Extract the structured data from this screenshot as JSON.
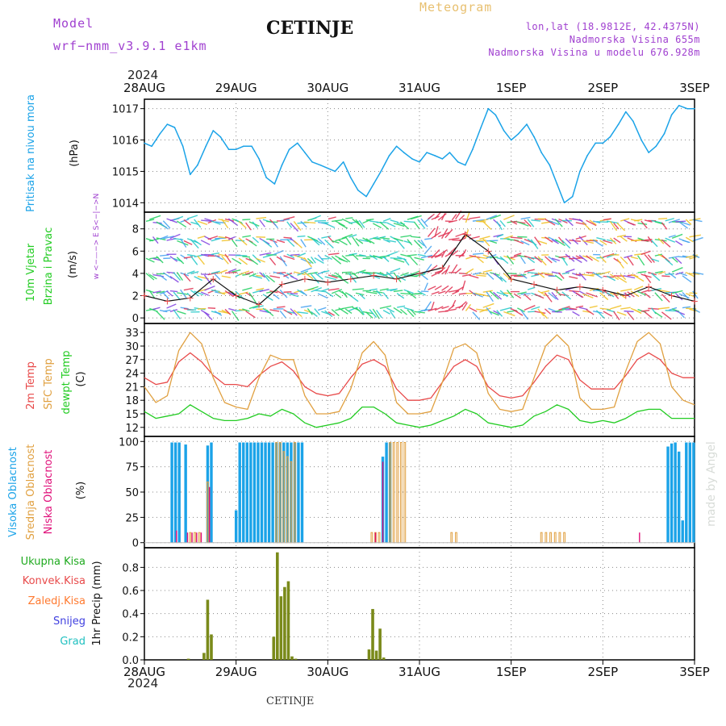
{
  "header": {
    "model_label": "Model",
    "model_name": "wrf−nmm_v3.9.1 e1km",
    "title": "CETINJE",
    "product": "Meteogram",
    "lonlat": "lon,lat (18.9812E, 42.4375N)",
    "elevation": "Nadmorska Visina 655m",
    "model_elevation": "Nadmorska Visina u modelu 676.928m",
    "year_top": "2024",
    "year_bottom": "2024",
    "footer_station": "CETINJE",
    "credit": "made by Angel"
  },
  "colors": {
    "pressure": "#1ba3e8",
    "temp2m": "#e84a4a",
    "sfc": "#e0a040",
    "dewpt": "#22cc22",
    "cloud_high": "#1ba3e8",
    "cloud_mid": "#e0a040",
    "cloud_low": "#e0107a",
    "precip_total": "#1faa1f",
    "precip_conv": "#e84a4a",
    "precip_frozen": "#ff7a30",
    "precip_snow": "#4040e0",
    "precip_graupel": "#20c0c0",
    "precip_bar": "#7a8a1a",
    "purple": "#a040d0",
    "gold": "#e8c070"
  },
  "chart_data": [
    {
      "type": "line",
      "id": "pressure",
      "ylabel": [
        "Pritisak na nivou mora",
        "(hPa)"
      ],
      "x_ticks": [
        "28AUG",
        "29AUG",
        "30AUG",
        "31AUG",
        "1SEP",
        "2SEP",
        "3SEP"
      ],
      "ylim": [
        1013.7,
        1017.3
      ],
      "yticks": [
        1014,
        1015,
        1016,
        1017
      ],
      "grid": true,
      "x_days": [
        0,
        0.08,
        0.17,
        0.25,
        0.33,
        0.42,
        0.5,
        0.58,
        0.67,
        0.75,
        0.83,
        0.92,
        1.0,
        1.08,
        1.17,
        1.25,
        1.33,
        1.42,
        1.5,
        1.58,
        1.67,
        1.75,
        1.83,
        1.92,
        2.0,
        2.08,
        2.17,
        2.25,
        2.33,
        2.42,
        2.5,
        2.58,
        2.67,
        2.75,
        2.83,
        2.92,
        3.0,
        3.08,
        3.17,
        3.25,
        3.33,
        3.42,
        3.5,
        3.58,
        3.67,
        3.75,
        3.83,
        3.92,
        4.0,
        4.08,
        4.17,
        4.25,
        4.33,
        4.42,
        4.5,
        4.58,
        4.67,
        4.75,
        4.83,
        4.92,
        5.0,
        5.08,
        5.17,
        5.25,
        5.33,
        5.42,
        5.5,
        5.58,
        5.67,
        5.75,
        5.83,
        5.92,
        6.0
      ],
      "values": [
        1015.9,
        1015.8,
        1016.2,
        1016.5,
        1016.4,
        1015.8,
        1014.9,
        1015.2,
        1015.8,
        1016.3,
        1016.1,
        1015.7,
        1015.7,
        1015.8,
        1015.8,
        1015.4,
        1014.8,
        1014.6,
        1015.2,
        1015.7,
        1015.9,
        1015.6,
        1015.3,
        1015.2,
        1015.1,
        1015.0,
        1015.3,
        1014.8,
        1014.4,
        1014.2,
        1014.6,
        1015.0,
        1015.5,
        1015.8,
        1015.6,
        1015.4,
        1015.3,
        1015.6,
        1015.5,
        1015.4,
        1015.6,
        1015.3,
        1015.2,
        1015.7,
        1016.4,
        1017.0,
        1016.8,
        1016.3,
        1016.0,
        1016.2,
        1016.5,
        1016.1,
        1015.6,
        1015.2,
        1014.6,
        1014.0,
        1014.2,
        1015.0,
        1015.5,
        1015.9,
        1015.9,
        1016.1,
        1016.5,
        1016.9,
        1016.6,
        1016.0,
        1015.6,
        1015.8,
        1016.2,
        1016.8,
        1017.1,
        1017.0,
        1017.0
      ]
    },
    {
      "type": "line",
      "id": "wind",
      "ylabel": [
        "10m Vjetar",
        "Brzina i Pravac",
        "(m/s)"
      ],
      "compass": "w <−—−> E  S<−|−>N",
      "ylim": [
        -0.5,
        9.5
      ],
      "yticks": [
        0,
        2,
        4,
        6,
        8
      ],
      "grid": true,
      "x_days": [
        0,
        0.25,
        0.5,
        0.75,
        1.0,
        1.25,
        1.5,
        1.75,
        2.0,
        2.25,
        2.5,
        2.75,
        3.0,
        3.25,
        3.5,
        3.75,
        4.0,
        4.25,
        4.5,
        4.75,
        5.0,
        5.25,
        5.5,
        5.75,
        6.0
      ],
      "values": [
        2.0,
        1.5,
        1.8,
        3.5,
        2.0,
        1.2,
        3.0,
        3.5,
        3.2,
        3.5,
        3.8,
        3.5,
        4.0,
        4.5,
        7.5,
        6.0,
        3.5,
        3.0,
        2.5,
        2.8,
        2.5,
        2.0,
        2.8,
        2.0,
        1.5
      ]
    },
    {
      "type": "line",
      "id": "temperature",
      "ylabel": [
        "2m Temp",
        "SFC Temp",
        "dewpt Temp",
        "(C)"
      ],
      "ylim": [
        10,
        35
      ],
      "yticks": [
        12,
        15,
        18,
        21,
        24,
        27,
        30,
        33
      ],
      "grid": true,
      "x_days": [
        0,
        0.125,
        0.25,
        0.375,
        0.5,
        0.625,
        0.75,
        0.875,
        1.0,
        1.125,
        1.25,
        1.375,
        1.5,
        1.625,
        1.75,
        1.875,
        2.0,
        2.125,
        2.25,
        2.375,
        2.5,
        2.625,
        2.75,
        2.875,
        3.0,
        3.125,
        3.25,
        3.375,
        3.5,
        3.625,
        3.75,
        3.875,
        4.0,
        4.125,
        4.25,
        4.375,
        4.5,
        4.625,
        4.75,
        4.875,
        5.0,
        5.125,
        5.25,
        5.375,
        5.5,
        5.625,
        5.75,
        5.875,
        6.0
      ],
      "series": [
        {
          "name": "2m Temp",
          "values": [
            23.0,
            21.5,
            22.0,
            26.5,
            28.5,
            26.5,
            23.5,
            21.5,
            21.5,
            21.0,
            23.5,
            25.5,
            26.5,
            24.5,
            21.0,
            19.5,
            19.0,
            19.5,
            23.0,
            26.0,
            27.0,
            25.5,
            20.5,
            18.0,
            18.0,
            18.5,
            22.0,
            25.5,
            27.0,
            25.5,
            21.0,
            19.0,
            18.5,
            19.0,
            22.0,
            25.5,
            28.0,
            27.0,
            22.5,
            20.5,
            20.5,
            20.5,
            23.5,
            27.0,
            28.5,
            27.0,
            24.0,
            23.0,
            23.0
          ]
        },
        {
          "name": "SFC Temp",
          "values": [
            21.0,
            17.5,
            19.0,
            29.0,
            33.0,
            30.5,
            23.0,
            17.5,
            16.5,
            16.0,
            23.0,
            28.0,
            27.0,
            27.0,
            19.0,
            15.0,
            15.0,
            15.5,
            20.5,
            28.5,
            31.0,
            28.0,
            17.5,
            15.0,
            15.0,
            15.5,
            22.0,
            29.5,
            30.5,
            28.5,
            19.5,
            16.0,
            15.5,
            16.0,
            23.0,
            30.0,
            32.5,
            30.0,
            18.5,
            16.0,
            16.0,
            16.5,
            24.5,
            31.0,
            33.0,
            30.5,
            21.0,
            18.0,
            17.0
          ]
        },
        {
          "name": "dewpt Temp",
          "values": [
            15.5,
            14.0,
            14.5,
            15.0,
            17.0,
            15.5,
            14.0,
            13.5,
            13.5,
            14.0,
            15.0,
            14.5,
            16.0,
            15.0,
            13.0,
            12.0,
            12.5,
            13.0,
            14.0,
            16.5,
            16.5,
            15.0,
            13.0,
            12.5,
            12.0,
            12.5,
            13.5,
            14.5,
            16.0,
            15.0,
            13.0,
            12.5,
            12.0,
            12.5,
            14.5,
            15.5,
            17.0,
            16.0,
            13.5,
            13.0,
            13.5,
            13.0,
            14.0,
            15.5,
            16.0,
            16.0,
            14.0,
            14.0,
            14.0
          ]
        }
      ]
    },
    {
      "type": "bar",
      "id": "clouds",
      "ylabel": [
        "Visoka Oblacnost",
        "Srednja Oblacnost",
        "Niska Oblacnost",
        "(%)"
      ],
      "ylim": [
        -5,
        105
      ],
      "yticks": [
        0,
        25,
        50,
        75,
        100
      ],
      "grid": true,
      "series": [
        {
          "name": "Visoka Oblacnost",
          "x_days": [
            0.3,
            0.34,
            0.38,
            0.45,
            0.69,
            0.73,
            1.0,
            1.04,
            1.08,
            1.12,
            1.16,
            1.2,
            1.24,
            1.28,
            1.32,
            1.36,
            1.4,
            1.44,
            1.48,
            1.52,
            1.56,
            1.6,
            1.64,
            1.68,
            1.72,
            2.6,
            2.64,
            2.68,
            5.71,
            5.75,
            5.79,
            5.83,
            5.87,
            5.91,
            5.95,
            5.99
          ],
          "values": [
            99,
            99,
            99,
            97,
            96,
            99,
            32,
            99,
            99,
            99,
            99,
            99,
            99,
            99,
            99,
            99,
            99,
            99,
            99,
            99,
            99,
            99,
            99,
            99,
            99,
            85,
            99,
            99,
            95,
            98,
            99,
            90,
            22,
            99,
            99,
            99
          ]
        },
        {
          "name": "Srednja Oblacnost",
          "x_days": [
            0.5,
            0.55,
            0.6,
            0.69,
            1.44,
            1.48,
            1.52,
            1.56,
            1.6,
            1.64,
            2.48,
            2.52,
            2.56,
            2.68,
            2.72,
            2.76,
            2.8,
            2.84,
            3.35,
            3.4,
            4.33,
            4.38,
            4.43,
            4.48,
            4.53,
            4.58
          ],
          "values": [
            10,
            10,
            10,
            60,
            99,
            99,
            90,
            85,
            80,
            99,
            10,
            10,
            10,
            99,
            99,
            99,
            99,
            99,
            10,
            10,
            10,
            10,
            10,
            10,
            10,
            10
          ]
        },
        {
          "name": "Niska Oblacnost",
          "x_days": [
            0.35,
            0.47,
            0.52,
            0.57,
            0.62,
            0.71,
            2.52,
            2.6,
            5.4
          ],
          "values": [
            12,
            10,
            10,
            10,
            10,
            55,
            10,
            80,
            10
          ]
        }
      ]
    },
    {
      "type": "bar",
      "id": "precipitation",
      "ylabel": [
        "Ukupna Kisa",
        "Konvek.Kisa",
        "Zaledj.Kisa",
        "Snijeg",
        "Grad",
        "1hr Precip (mm)"
      ],
      "ylim": [
        0,
        0.97
      ],
      "yticks": [
        0.0,
        0.2,
        0.4,
        0.6,
        0.8
      ],
      "grid": true,
      "series": [
        {
          "name": "Ukupna Kisa",
          "x_days": [
            0.48,
            0.65,
            0.69,
            0.73,
            1.41,
            1.45,
            1.49,
            1.53,
            1.57,
            1.61,
            1.65,
            2.45,
            2.49,
            2.53,
            2.57,
            2.61
          ],
          "values": [
            0.01,
            0.06,
            0.52,
            0.22,
            0.2,
            0.93,
            0.55,
            0.63,
            0.68,
            0.03,
            0.01,
            0.09,
            0.44,
            0.08,
            0.27,
            0.02
          ]
        }
      ]
    }
  ]
}
